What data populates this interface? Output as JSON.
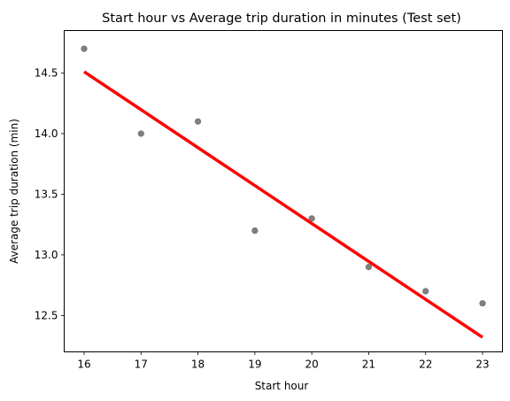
{
  "chart_data": {
    "type": "scatter",
    "title": "Start hour vs Average trip duration in minutes (Test set)",
    "xlabel": "Start hour",
    "ylabel": "Average trip duration (min)",
    "xlim": [
      15.65,
      23.35
    ],
    "ylim": [
      12.2,
      14.85
    ],
    "xticks": [
      16,
      17,
      18,
      19,
      20,
      21,
      22,
      23
    ],
    "yticks": [
      12.5,
      13.0,
      13.5,
      14.0,
      14.5
    ],
    "ytick_labels": [
      "12.5",
      "13.0",
      "13.5",
      "14.0",
      "14.5"
    ],
    "grid": false,
    "legend": "none",
    "series": [
      {
        "kind": "scatter",
        "color": "#7f7f7f",
        "x": [
          16,
          17,
          18,
          19,
          20,
          21,
          22,
          23
        ],
        "y": [
          14.7,
          14.0,
          14.1,
          13.2,
          13.3,
          12.9,
          12.7,
          12.6
        ]
      },
      {
        "kind": "line",
        "color": "#ff0000",
        "x": [
          16,
          23
        ],
        "y": [
          14.51,
          12.32
        ]
      }
    ]
  }
}
